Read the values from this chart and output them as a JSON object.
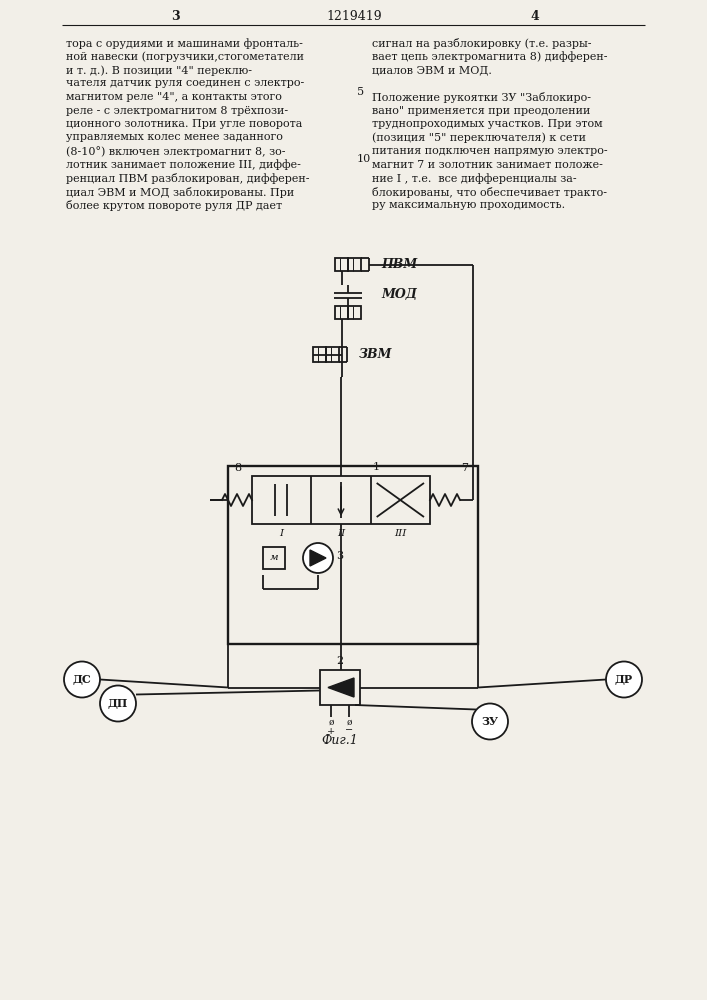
{
  "bg_color": "#f2efe8",
  "line_color": "#1a1a1a",
  "page_header": [
    "3",
    "1219419",
    "4"
  ],
  "col1_lines": [
    "тора с орудиями и машинами фронталь-",
    "ной навески (погрузчики,стогометатели",
    "и т. д.). В позиции \"4\" переклю-",
    "чателя датчик руля соединен с электро-",
    "магнитом реле \"4\", а контакты этого",
    "реле - с электромагнитом 8 трёхпози-",
    "ционного золотника. При угле поворота",
    "управляемых колес менее заданного",
    "(8-10°) включен электромагнит 8, зо-",
    "лотник занимает положение III, диффе-",
    "ренциал ПВМ разблокирован, дифферен-",
    "циал ЭВМ и МОД заблокированы. При",
    "более крутом повороте руля ДР дает"
  ],
  "col2_lines": [
    "сигнал на разблокировку (т.е. разры-",
    "вает цепь электромагнита 8) дифферен-",
    "циалов ЭВМ и МОД.",
    "",
    "Положение рукоятки ЗУ \"Заблокиро-",
    "вано\" применяется при преодолении",
    "труднопроходимых участков. При этом",
    "(позиция \"5\" переключателя) к сети",
    "питания подключен напрямую электро-",
    "магнит 7 и золотник занимает положе-",
    "ние I , т.е.  все дифференциалы за-",
    "блокированы, что обеспечивает тракто-",
    "ру максимальную проходимость."
  ]
}
